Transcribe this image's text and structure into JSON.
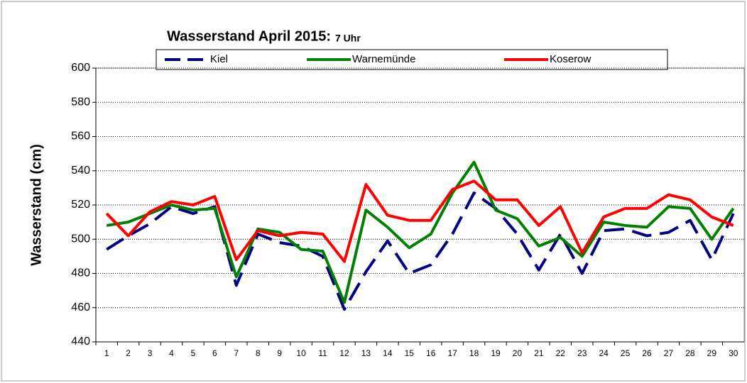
{
  "chart_data": {
    "type": "line",
    "title": "Wasserstand April 2015:",
    "subtitle": "7 Uhr",
    "y_label": "Wasserstand (cm)",
    "categories": [
      "1",
      "2",
      "3",
      "4",
      "5",
      "6",
      "7",
      "8",
      "9",
      "10",
      "11",
      "12",
      "13",
      "14",
      "15",
      "16",
      "17",
      "18",
      "19",
      "20",
      "21",
      "22",
      "23",
      "24",
      "25",
      "26",
      "27",
      "28",
      "29",
      "30"
    ],
    "series": [
      {
        "name": "Kiel",
        "color": "#000080",
        "dash": true,
        "values": [
          494,
          502,
          509,
          519,
          515,
          519,
          473,
          503,
          498,
          496,
          490,
          459,
          481,
          499,
          480,
          485,
          503,
          527,
          518,
          503,
          482,
          503,
          480,
          505,
          506,
          502,
          504,
          511,
          488,
          515
        ]
      },
      {
        "name": "Warnemünde",
        "color": "#008000",
        "values": [
          508,
          510,
          515,
          520,
          517,
          518,
          478,
          506,
          504,
          494,
          493,
          463,
          517,
          507,
          495,
          503,
          527,
          545,
          517,
          512,
          496,
          501,
          490,
          510,
          508,
          507,
          519,
          518,
          500,
          518
        ]
      },
      {
        "name": "Koserow",
        "color": "#ff0000",
        "values": [
          515,
          502,
          516,
          522,
          520,
          525,
          488,
          505,
          502,
          504,
          503,
          487,
          532,
          514,
          511,
          511,
          529,
          534,
          523,
          523,
          508,
          519,
          492,
          513,
          518,
          518,
          526,
          523,
          513,
          508
        ]
      }
    ],
    "ylim": [
      440,
      600
    ],
    "yticks": [
      440,
      460,
      480,
      500,
      520,
      540,
      560,
      580,
      600
    ],
    "grid": true,
    "legend": "top"
  }
}
